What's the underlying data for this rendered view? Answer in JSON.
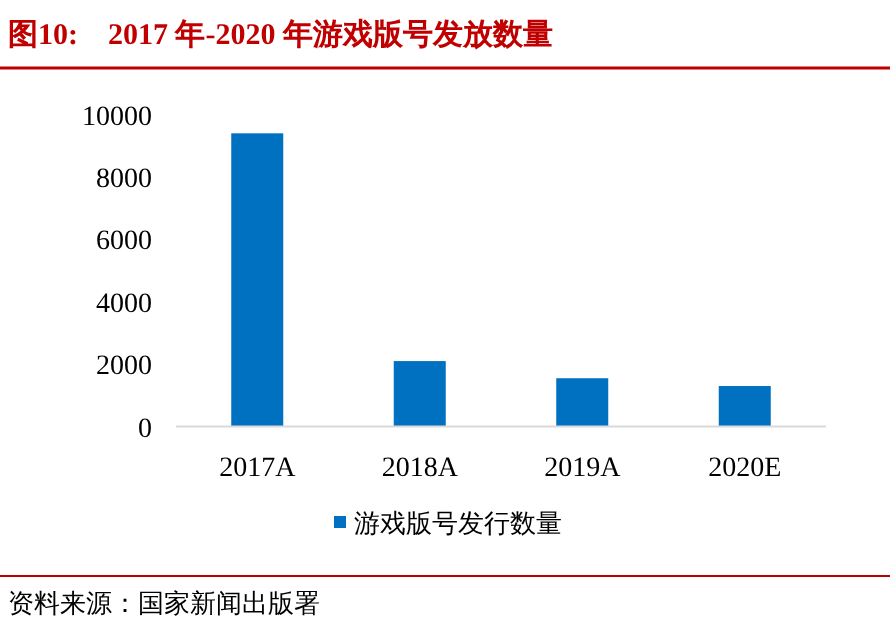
{
  "chart_data": {
    "type": "bar",
    "title": "图10:    2017 年-2020 年游戏版号发放数量",
    "categories": [
      "2017A",
      "2018A",
      "2019A",
      "2020E"
    ],
    "series": [
      {
        "name": "游戏版号发行数量",
        "color": "#0070c0",
        "values": [
          9400,
          2100,
          1550,
          1300
        ]
      }
    ],
    "ylim": [
      0,
      10000
    ],
    "yticks": [
      0,
      2000,
      4000,
      6000,
      8000,
      10000
    ],
    "legend": "bottom",
    "grid": false,
    "annotations": [
      "资料来源：国家新闻出版署"
    ]
  }
}
